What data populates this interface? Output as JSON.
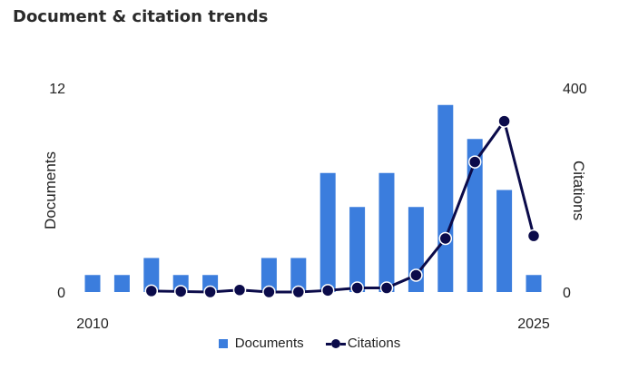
{
  "title": "Document & citation trends",
  "chart_data": {
    "type": "bar+line",
    "x_start_label": "2010",
    "x_end_label": "2025",
    "years": [
      2010,
      2011,
      2012,
      2013,
      2014,
      2015,
      2016,
      2017,
      2018,
      2019,
      2020,
      2021,
      2022,
      2023,
      2024,
      2025
    ],
    "left_axis": {
      "label": "Documents",
      "min_label": "0",
      "max_label": "12",
      "range": [
        0,
        12
      ]
    },
    "right_axis": {
      "label": "Citations",
      "min_label": "0",
      "max_label": "400",
      "range": [
        0,
        400
      ]
    },
    "series": [
      {
        "name": "Documents",
        "type": "bar",
        "axis": "left",
        "color": "#3b7ddd",
        "values": [
          1,
          1,
          2,
          1,
          1,
          0,
          2,
          2,
          7,
          5,
          7,
          5,
          11,
          9,
          6,
          1
        ]
      },
      {
        "name": "Citations",
        "type": "line",
        "axis": "right",
        "color": "#0b0b4a",
        "years": [
          2012,
          2013,
          2014,
          2015,
          2016,
          2017,
          2018,
          2019,
          2020,
          2021,
          2022,
          2023,
          2024,
          2025
        ],
        "values": [
          2,
          1,
          0,
          4,
          0,
          0,
          3,
          8,
          8,
          33,
          105,
          255,
          335,
          110
        ]
      }
    ],
    "legend_position": "bottom",
    "grid": false
  }
}
